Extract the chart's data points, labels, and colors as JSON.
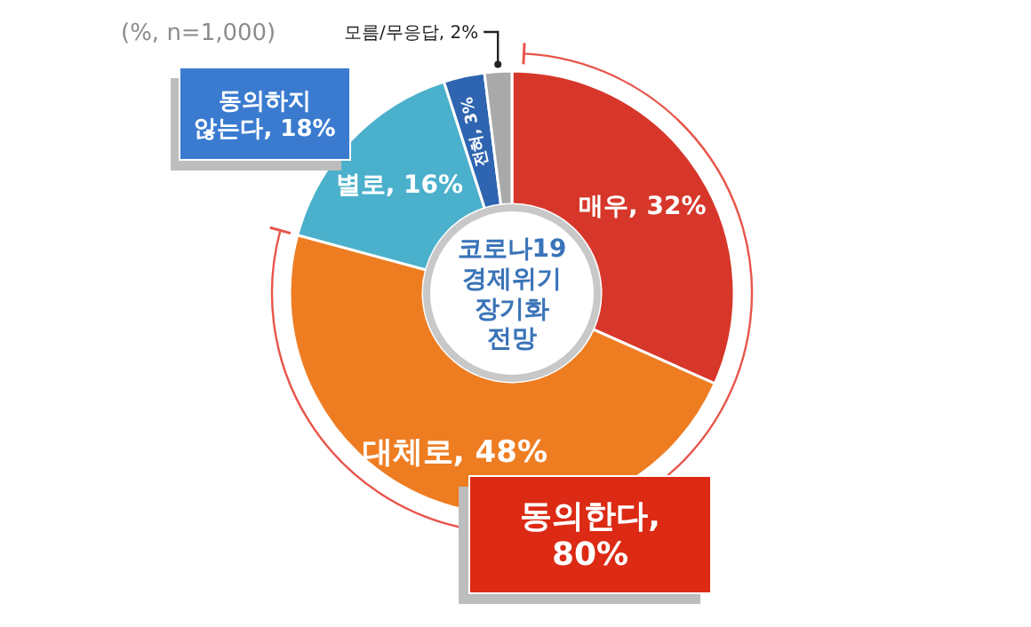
{
  "chart_data": {
    "type": "donut",
    "title": "코로나19\n경제위기\n장기화\n전망",
    "categories": [
      "매우",
      "대체로",
      "별로",
      "전혀",
      "모름/무응답"
    ],
    "values": [
      32,
      48,
      16,
      3,
      2
    ],
    "colors": [
      "#d7372a",
      "#ee7d22",
      "#4bb0cc",
      "#2e64b0",
      "#a9a9a9"
    ],
    "value_labels": [
      "32%",
      "48%",
      "16%",
      "3%",
      "2%"
    ],
    "annotations": [
      "(%, n=1,000)",
      "동의하지\n않는다, 18%",
      "동의한다,\n80%"
    ]
  }
}
